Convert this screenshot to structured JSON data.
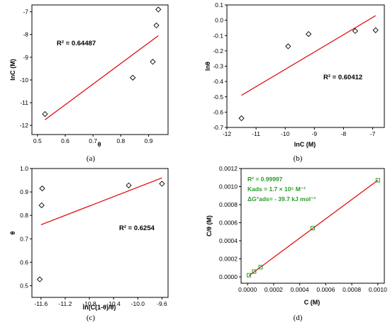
{
  "chart_data": [
    {
      "id": "a",
      "type": "scatter",
      "caption": "(a)",
      "xlabel": "θ",
      "ylabel": "lnC (M)",
      "xlim": [
        0.48,
        0.97
      ],
      "ylim": [
        -12.4,
        -6.7
      ],
      "xticks": [
        "0.5",
        "0.6",
        "0.7",
        "0.8",
        "0.9"
      ],
      "yticks": [
        "-12",
        "-11",
        "-10",
        "-9",
        "-8",
        "-7"
      ],
      "points": [
        [
          0.527,
          -11.5
        ],
        [
          0.843,
          -9.9
        ],
        [
          0.915,
          -9.2
        ],
        [
          0.928,
          -7.6
        ],
        [
          0.935,
          -6.9
        ]
      ],
      "fit_line": [
        [
          0.527,
          -11.75
        ],
        [
          0.935,
          -8.05
        ]
      ],
      "r2_label": "R² = 0.64487"
    },
    {
      "id": "b",
      "type": "scatter",
      "caption": "(b)",
      "xlabel": "lnC (M)",
      "ylabel": "lnθ",
      "xlim": [
        -12,
        -6.6
      ],
      "ylim": [
        -0.7,
        0.1
      ],
      "xticks": [
        "-12",
        "-11",
        "-10",
        "-9",
        "-8",
        "-7"
      ],
      "yticks": [
        "-0.7",
        "-0.6",
        "-0.5",
        "-0.4",
        "-0.3",
        "-0.2",
        "-0.1",
        "0.0",
        "0.1"
      ],
      "points": [
        [
          -11.5,
          -0.64
        ],
        [
          -9.9,
          -0.17
        ],
        [
          -9.2,
          -0.09
        ],
        [
          -7.6,
          -0.07
        ],
        [
          -6.9,
          -0.065
        ]
      ],
      "fit_line": [
        [
          -11.5,
          -0.49
        ],
        [
          -6.9,
          0.03
        ]
      ],
      "r2_label": "R² = 0.60412"
    },
    {
      "id": "c",
      "type": "scatter",
      "caption": "(c)",
      "xlabel": "ln(C(1-θ)/θ)",
      "ylabel": "θ",
      "xlim": [
        -11.75,
        -9.5
      ],
      "ylim": [
        0.45,
        1.0
      ],
      "xticks": [
        "-11.6",
        "-11.2",
        "-10.8",
        "-10.4",
        "-10.0",
        "-9.6"
      ],
      "yticks": [
        "0.5",
        "0.6",
        "0.7",
        "0.8",
        "0.9",
        "1.0"
      ],
      "points": [
        [
          -11.62,
          0.527
        ],
        [
          -11.59,
          0.843
        ],
        [
          -11.58,
          0.915
        ],
        [
          -10.15,
          0.928
        ],
        [
          -9.6,
          0.935
        ]
      ],
      "fit_line": [
        [
          -11.6,
          0.76
        ],
        [
          -9.6,
          0.96
        ]
      ],
      "r2_label": "R² = 0.6254"
    },
    {
      "id": "d",
      "type": "line",
      "caption": "(d)",
      "xlabel": "C (M)",
      "ylabel": "C/θ (M)",
      "xlim": [
        -5e-05,
        0.00105
      ],
      "ylim": [
        -7e-05,
        0.0012
      ],
      "xticks": [
        "0.0000",
        "0.0002",
        "0.0004",
        "0.0006",
        "0.0008",
        "0.0010"
      ],
      "yticks": [
        "0.0000",
        "0.0002",
        "0.0004",
        "0.0006",
        "0.0008",
        "0.0010",
        "0.0012"
      ],
      "points": [
        [
          1e-05,
          1.9e-05
        ],
        [
          5e-05,
          5.9e-05
        ],
        [
          0.0001,
          0.000108
        ],
        [
          0.0005,
          0.00054
        ],
        [
          0.001,
          0.00107
        ]
      ],
      "fit_line": [
        [
          1e-05,
          1.3e-05
        ],
        [
          0.001,
          0.00107
        ]
      ],
      "annotations": [
        "R² = 0.99997",
        "Kads = 1.7 × 10⁵ M⁻¹",
        "ΔG°ads= - 39.7 kJ mol⁻¹"
      ]
    }
  ]
}
